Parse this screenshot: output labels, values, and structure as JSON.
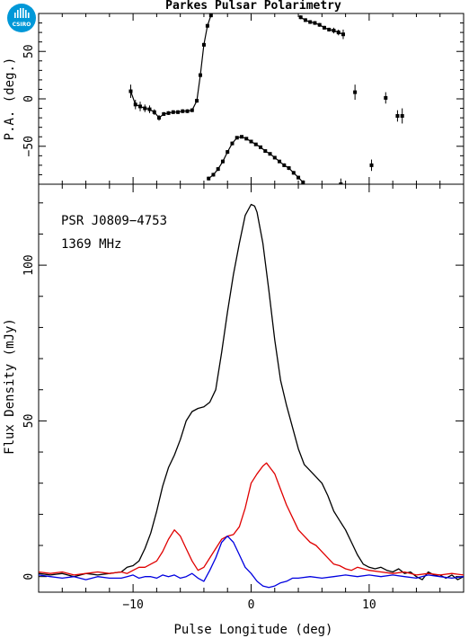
{
  "title": "Parkes Pulsar Polarimetry",
  "logo": {
    "text": "CSIRO",
    "color": "#0098d8"
  },
  "annotations": [
    "PSR J0809−4753",
    "1369 MHz"
  ],
  "chart_data": [
    {
      "type": "scatter",
      "panel": "position-angle",
      "ylabel": "P.A. (deg.)",
      "xlabel": "",
      "xlim": [
        -18,
        18
      ],
      "ylim": [
        -90,
        90
      ],
      "yticks": [
        -50,
        0,
        50
      ],
      "yticklabels": [
        "−50",
        "0",
        "50"
      ],
      "color": "#000000",
      "series": [
        {
          "values": [
            [
              -10.2,
              8,
              7
            ],
            [
              -9.8,
              -6,
              5
            ],
            [
              -9.4,
              -8,
              5
            ],
            [
              -9.0,
              -10,
              4
            ],
            [
              -8.6,
              -11,
              4
            ],
            [
              -8.2,
              -14,
              3
            ],
            [
              -7.8,
              -20,
              3
            ],
            [
              -7.4,
              -16,
              2
            ],
            [
              -7.0,
              -15,
              2
            ],
            [
              -6.6,
              -14,
              2
            ],
            [
              -6.2,
              -14,
              2
            ],
            [
              -5.8,
              -13,
              2
            ],
            [
              -5.4,
              -13,
              2
            ],
            [
              -5.0,
              -12,
              2
            ],
            [
              -4.6,
              -2,
              2
            ],
            [
              -4.3,
              25,
              2
            ],
            [
              -4.0,
              57,
              2
            ],
            [
              -3.7,
              77,
              2
            ],
            [
              -3.4,
              88,
              2
            ]
          ]
        },
        {
          "values": [
            [
              -3.6,
              -84,
              2
            ],
            [
              -3.2,
              -80,
              2
            ],
            [
              -2.8,
              -74,
              2
            ],
            [
              -2.4,
              -66,
              2
            ],
            [
              -2.0,
              -56,
              2
            ],
            [
              -1.6,
              -47,
              2
            ],
            [
              -1.2,
              -41,
              1
            ],
            [
              -0.8,
              -40,
              1
            ],
            [
              -0.4,
              -42,
              1
            ],
            [
              0.0,
              -45,
              1
            ],
            [
              0.4,
              -48,
              1
            ],
            [
              0.8,
              -51,
              1
            ],
            [
              1.2,
              -55,
              1
            ],
            [
              1.6,
              -58,
              1
            ],
            [
              2.0,
              -62,
              1
            ],
            [
              2.4,
              -66,
              1
            ],
            [
              2.8,
              -70,
              2
            ],
            [
              3.2,
              -73,
              2
            ],
            [
              3.6,
              -78,
              2
            ],
            [
              4.0,
              -83,
              2
            ],
            [
              4.4,
              -88,
              2
            ]
          ]
        },
        {
          "values": [
            [
              4.2,
              86,
              2
            ],
            [
              4.6,
              83,
              2
            ],
            [
              5.0,
              81,
              2
            ],
            [
              5.4,
              80,
              2
            ],
            [
              5.8,
              78,
              2
            ],
            [
              6.2,
              75,
              2
            ],
            [
              6.6,
              73,
              2
            ],
            [
              7.0,
              72,
              3
            ],
            [
              7.4,
              70,
              3
            ],
            [
              7.8,
              68,
              5
            ]
          ]
        },
        {
          "values": [
            [
              7.6,
              -90,
              6
            ],
            [
              8.8,
              7,
              8
            ],
            [
              10.2,
              -70,
              6
            ],
            [
              11.4,
              1,
              6
            ],
            [
              12.4,
              -18,
              6
            ],
            [
              12.8,
              -18,
              8
            ]
          ]
        }
      ]
    },
    {
      "type": "line",
      "panel": "flux-profile",
      "xlabel": "Pulse Longitude (deg)",
      "ylabel": "Flux Density (mJy)",
      "xlim": [
        -18,
        18
      ],
      "ylim": [
        -5,
        126
      ],
      "xticks": [
        -10,
        0,
        10
      ],
      "xticklabels": [
        "−10",
        "0",
        "10"
      ],
      "yticks": [
        0,
        50,
        100
      ],
      "yticklabels": [
        "0",
        "50",
        "100"
      ],
      "series": [
        {
          "color": "#000000",
          "values": [
            [
              -18,
              1
            ],
            [
              -17,
              0.5
            ],
            [
              -16,
              1
            ],
            [
              -15,
              0
            ],
            [
              -14,
              1
            ],
            [
              -13,
              0.5
            ],
            [
              -12,
              1
            ],
            [
              -11,
              1.5
            ],
            [
              -10.5,
              3
            ],
            [
              -10,
              3.5
            ],
            [
              -9.5,
              5
            ],
            [
              -9,
              9
            ],
            [
              -8.5,
              14
            ],
            [
              -8,
              21
            ],
            [
              -7.5,
              29
            ],
            [
              -7,
              35
            ],
            [
              -6.5,
              39
            ],
            [
              -6,
              44
            ],
            [
              -5.5,
              50
            ],
            [
              -5,
              53
            ],
            [
              -4.5,
              54
            ],
            [
              -4,
              54.5
            ],
            [
              -3.5,
              56
            ],
            [
              -3,
              60
            ],
            [
              -2.5,
              72
            ],
            [
              -2,
              85
            ],
            [
              -1.5,
              97
            ],
            [
              -1,
              107
            ],
            [
              -0.5,
              116
            ],
            [
              0,
              119.5
            ],
            [
              0.3,
              119
            ],
            [
              0.5,
              117
            ],
            [
              1,
              107
            ],
            [
              1.5,
              92
            ],
            [
              2,
              76
            ],
            [
              2.5,
              63
            ],
            [
              3,
              55
            ],
            [
              3.5,
              48
            ],
            [
              4,
              41
            ],
            [
              4.5,
              36
            ],
            [
              5,
              34
            ],
            [
              5.5,
              32
            ],
            [
              6,
              30
            ],
            [
              6.5,
              26
            ],
            [
              7,
              21
            ],
            [
              7.5,
              18
            ],
            [
              8,
              15
            ],
            [
              8.5,
              11
            ],
            [
              9,
              7
            ],
            [
              9.5,
              4
            ],
            [
              10,
              3
            ],
            [
              10.5,
              2.5
            ],
            [
              11,
              3
            ],
            [
              11.5,
              2
            ],
            [
              12,
              1.5
            ],
            [
              12.5,
              2.5
            ],
            [
              13,
              1
            ],
            [
              13.5,
              1.5
            ],
            [
              14,
              0
            ],
            [
              14.5,
              -1
            ],
            [
              15,
              1.5
            ],
            [
              15.5,
              0.5
            ],
            [
              16,
              0.5
            ],
            [
              16.5,
              -0.5
            ],
            [
              17,
              0.5
            ],
            [
              17.5,
              -1
            ],
            [
              18,
              0
            ]
          ]
        },
        {
          "color": "#e00000",
          "values": [
            [
              -18,
              1.5
            ],
            [
              -17,
              1
            ],
            [
              -16,
              1.5
            ],
            [
              -15,
              0.5
            ],
            [
              -14,
              1
            ],
            [
              -13,
              1.5
            ],
            [
              -12,
              1
            ],
            [
              -11,
              1.5
            ],
            [
              -10.5,
              1
            ],
            [
              -10,
              2
            ],
            [
              -9.5,
              3
            ],
            [
              -9,
              3
            ],
            [
              -8.5,
              4
            ],
            [
              -8,
              5
            ],
            [
              -7.5,
              8
            ],
            [
              -7,
              12
            ],
            [
              -6.5,
              15
            ],
            [
              -6,
              13
            ],
            [
              -5.5,
              9
            ],
            [
              -5,
              5
            ],
            [
              -4.5,
              2
            ],
            [
              -4,
              3
            ],
            [
              -3.5,
              6
            ],
            [
              -3,
              9
            ],
            [
              -2.5,
              12
            ],
            [
              -2,
              13
            ],
            [
              -1.5,
              13.5
            ],
            [
              -1,
              16
            ],
            [
              -0.5,
              22
            ],
            [
              0,
              30
            ],
            [
              0.5,
              33
            ],
            [
              1,
              35.5
            ],
            [
              1.3,
              36.5
            ],
            [
              1.6,
              35
            ],
            [
              2,
              33
            ],
            [
              2.5,
              28
            ],
            [
              3,
              23
            ],
            [
              3.5,
              19
            ],
            [
              4,
              15
            ],
            [
              4.5,
              13
            ],
            [
              5,
              11
            ],
            [
              5.5,
              10
            ],
            [
              6,
              8
            ],
            [
              6.5,
              6
            ],
            [
              7,
              4
            ],
            [
              7.5,
              3.5
            ],
            [
              8,
              2.5
            ],
            [
              8.5,
              2
            ],
            [
              9,
              3
            ],
            [
              9.5,
              2.5
            ],
            [
              10,
              2
            ],
            [
              11,
              1.5
            ],
            [
              12,
              1
            ],
            [
              13,
              1.5
            ],
            [
              14,
              0.5
            ],
            [
              15,
              1
            ],
            [
              16,
              0.5
            ],
            [
              17,
              1
            ],
            [
              18,
              0.5
            ]
          ]
        },
        {
          "color": "#0000e0",
          "values": [
            [
              -18,
              0.5
            ],
            [
              -17,
              0
            ],
            [
              -16,
              -0.5
            ],
            [
              -15,
              0
            ],
            [
              -14,
              -1
            ],
            [
              -13,
              0
            ],
            [
              -12,
              -0.5
            ],
            [
              -11,
              -0.5
            ],
            [
              -10.5,
              0
            ],
            [
              -10,
              0.5
            ],
            [
              -9.5,
              -0.5
            ],
            [
              -9,
              0
            ],
            [
              -8.5,
              0
            ],
            [
              -8,
              -0.5
            ],
            [
              -7.5,
              0.5
            ],
            [
              -7,
              0
            ],
            [
              -6.5,
              0.5
            ],
            [
              -6,
              -0.5
            ],
            [
              -5.5,
              0
            ],
            [
              -5,
              1
            ],
            [
              -4.5,
              -0.5
            ],
            [
              -4,
              -1.5
            ],
            [
              -3.5,
              2
            ],
            [
              -3,
              6
            ],
            [
              -2.5,
              11
            ],
            [
              -2,
              13
            ],
            [
              -1.5,
              11
            ],
            [
              -1,
              7
            ],
            [
              -0.5,
              3
            ],
            [
              0,
              1
            ],
            [
              0.5,
              -1.5
            ],
            [
              1,
              -3
            ],
            [
              1.5,
              -3.5
            ],
            [
              2,
              -3
            ],
            [
              2.5,
              -2
            ],
            [
              3,
              -1.5
            ],
            [
              3.5,
              -0.5
            ],
            [
              4,
              -0.5
            ],
            [
              5,
              0
            ],
            [
              6,
              -0.5
            ],
            [
              7,
              0
            ],
            [
              8,
              0.5
            ],
            [
              9,
              0
            ],
            [
              10,
              0.5
            ],
            [
              11,
              0
            ],
            [
              12,
              0.5
            ],
            [
              13,
              0
            ],
            [
              14,
              -0.5
            ],
            [
              15,
              0.5
            ],
            [
              16,
              0
            ],
            [
              17,
              -0.5
            ],
            [
              18,
              0
            ]
          ]
        }
      ]
    }
  ]
}
